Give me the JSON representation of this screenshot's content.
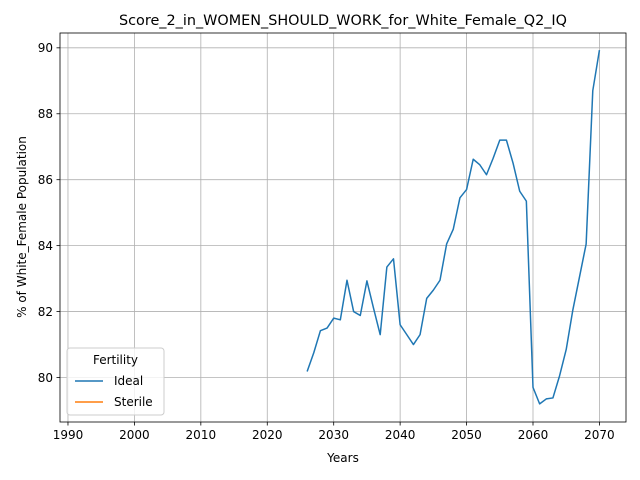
{
  "chart_data": {
    "type": "line",
    "title": "Score_2_in_WOMEN_SHOULD_WORK_for_White_Female_Q2_IQ",
    "xlabel": "Years",
    "ylabel": "% of White_Female Population",
    "xlim": [
      1988.8,
      2074.0
    ],
    "ylim": [
      78.65,
      90.45
    ],
    "xticks": [
      1990,
      2000,
      2010,
      2020,
      2030,
      2040,
      2050,
      2060,
      2070
    ],
    "yticks": [
      80,
      82,
      84,
      86,
      88,
      90
    ],
    "grid": true,
    "legend": {
      "title": "Fertility",
      "placement": "lower-left",
      "entries": [
        "Ideal",
        "Sterile"
      ]
    },
    "series": [
      {
        "name": "Ideal",
        "color": "#1f77b4",
        "x": [
          2026,
          2027,
          2028,
          2029,
          2030,
          2031,
          2032,
          2033,
          2034,
          2035,
          2036,
          2037,
          2038,
          2039,
          2040,
          2041,
          2042,
          2043,
          2044,
          2045,
          2046,
          2047,
          2048,
          2049,
          2050,
          2051,
          2052,
          2053,
          2054,
          2055,
          2056,
          2057,
          2058,
          2059,
          2060,
          2061,
          2062,
          2063,
          2064,
          2065,
          2066,
          2067,
          2068,
          2069,
          2070
        ],
        "y": [
          80.18,
          80.75,
          81.42,
          81.5,
          81.8,
          81.75,
          82.95,
          82.0,
          81.88,
          82.93,
          82.1,
          81.3,
          83.35,
          83.6,
          81.6,
          81.3,
          81.0,
          81.3,
          82.4,
          82.65,
          82.95,
          84.05,
          84.5,
          85.45,
          85.7,
          86.62,
          86.45,
          86.15,
          86.65,
          87.2,
          87.2,
          86.5,
          85.65,
          85.35,
          79.7,
          79.2,
          79.35,
          79.38,
          80.05,
          80.85,
          82.05,
          83.05,
          84.05,
          88.7,
          89.93
        ]
      },
      {
        "name": "Sterile",
        "color": "#ff7f0e",
        "x": [],
        "y": []
      }
    ]
  }
}
